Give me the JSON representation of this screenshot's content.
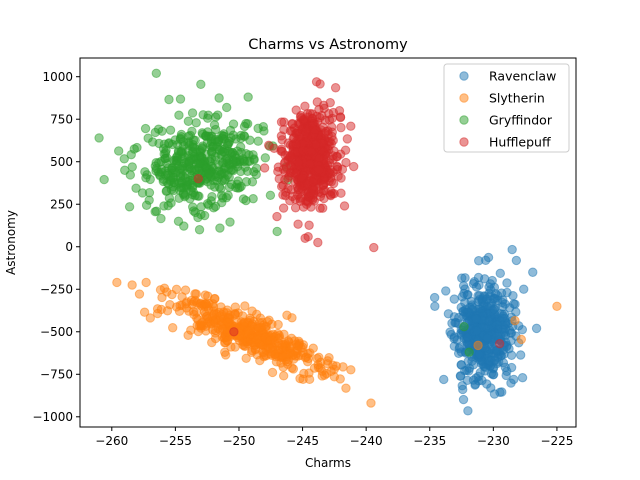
{
  "chart_data": {
    "type": "scatter",
    "title": "Charms vs Astronomy",
    "xlabel": "Charms",
    "ylabel": "Astronomy",
    "xlim": [
      -262.5,
      -223.5
    ],
    "ylim": [
      -1060,
      1110
    ],
    "xticks": [
      -260,
      -255,
      -250,
      -245,
      -240,
      -235,
      -230,
      -225
    ],
    "yticks": [
      -1000,
      -750,
      -500,
      -250,
      0,
      250,
      500,
      750,
      1000
    ],
    "grid": false,
    "legend_position": "top-right",
    "series": [
      {
        "name": "Ravenclaw",
        "color": "#1f77b4",
        "cluster": {
          "cx": -230.8,
          "cy": -500,
          "sx": 1.1,
          "sy": 140,
          "corr": 0,
          "n": 460,
          "seed": 11
        },
        "outliers": [
          {
            "x": -232.0,
            "y": -965
          },
          {
            "x": -230.6,
            "y": -80
          },
          {
            "x": -226.9,
            "y": -150
          },
          {
            "x": -234.6,
            "y": -350
          },
          {
            "x": -226.6,
            "y": -480
          },
          {
            "x": -227.7,
            "y": -770
          },
          {
            "x": -233.9,
            "y": -780
          },
          {
            "x": -230.2,
            "y": -830
          }
        ]
      },
      {
        "name": "Slytherin",
        "color": "#ff7f0e",
        "cluster": {
          "cx": -249.5,
          "cy": -510,
          "sx": 2.9,
          "sy": 110,
          "corr": -0.82,
          "n": 420,
          "seed": 23
        },
        "outliers": [
          {
            "x": -259.6,
            "y": -210
          },
          {
            "x": -258.4,
            "y": -225
          },
          {
            "x": -257.3,
            "y": -210
          },
          {
            "x": -256.4,
            "y": -365
          },
          {
            "x": -242.5,
            "y": -765
          },
          {
            "x": -245.2,
            "y": -775
          },
          {
            "x": -225.0,
            "y": -350
          },
          {
            "x": -227.8,
            "y": -545
          },
          {
            "x": -228.3,
            "y": -435
          },
          {
            "x": -231.2,
            "y": -580
          }
        ]
      },
      {
        "name": "Gryffindor",
        "color": "#2ca02c",
        "cluster": {
          "cx": -252.8,
          "cy": 490,
          "sx": 2.3,
          "sy": 130,
          "corr": 0.15,
          "n": 430,
          "seed": 37
        },
        "outliers": [
          {
            "x": -256.5,
            "y": 1020
          },
          {
            "x": -253.0,
            "y": 955
          },
          {
            "x": -261.0,
            "y": 640
          },
          {
            "x": -260.6,
            "y": 395
          },
          {
            "x": -258.6,
            "y": 235
          },
          {
            "x": -255.9,
            "y": 240
          },
          {
            "x": -253.1,
            "y": 100
          },
          {
            "x": -251.5,
            "y": 110
          },
          {
            "x": -247.0,
            "y": 90
          },
          {
            "x": -231.9,
            "y": -620
          },
          {
            "x": -232.3,
            "y": -470
          }
        ]
      },
      {
        "name": "Hufflepuff",
        "color": "#d62728",
        "cluster": {
          "cx": -244.4,
          "cy": 520,
          "sx": 1.05,
          "sy": 135,
          "corr": 0,
          "n": 560,
          "seed": 53
        },
        "outliers": [
          {
            "x": -239.4,
            "y": -5
          },
          {
            "x": -243.9,
            "y": 970
          },
          {
            "x": -242.4,
            "y": 935
          },
          {
            "x": -244.8,
            "y": 50
          },
          {
            "x": -243.8,
            "y": 25
          },
          {
            "x": -241.7,
            "y": 240
          },
          {
            "x": -253.2,
            "y": 400
          },
          {
            "x": -250.4,
            "y": -500
          },
          {
            "x": -229.5,
            "y": -570
          }
        ]
      }
    ]
  }
}
